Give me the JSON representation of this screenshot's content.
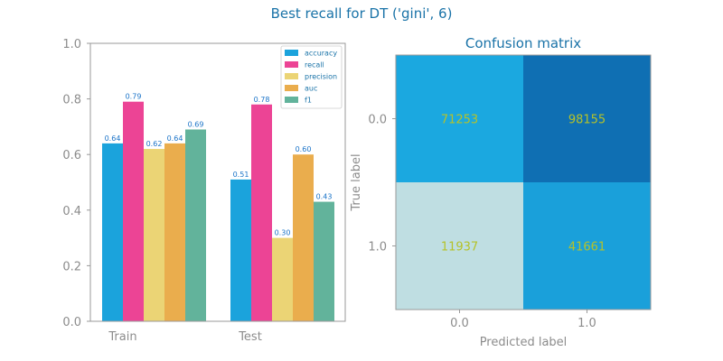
{
  "figure": {
    "suptitle": "Best recall for DT ('gini', 6)"
  },
  "chart_data": [
    {
      "type": "bar",
      "title": "",
      "categories": [
        "Train",
        "Test"
      ],
      "series": [
        {
          "name": "accuracy",
          "values": [
            0.64,
            0.51
          ],
          "color": "#1ba3dc"
        },
        {
          "name": "recall",
          "values": [
            0.79,
            0.78
          ],
          "color": "#ec4495"
        },
        {
          "name": "precision",
          "values": [
            0.62,
            0.3
          ],
          "color": "#ebd475"
        },
        {
          "name": "auc",
          "values": [
            0.64,
            0.6
          ],
          "color": "#eaad4d"
        },
        {
          "name": "f1",
          "values": [
            0.69,
            0.43
          ],
          "color": "#62b39b"
        }
      ],
      "value_labels": [
        [
          "0.64",
          "0.79",
          "0.62",
          "0.64",
          "0.69"
        ],
        [
          "0.51",
          "0.78",
          "0.30",
          "0.60",
          "0.43"
        ]
      ],
      "ylim": [
        0,
        1
      ],
      "yticks": [
        "0.0",
        "0.2",
        "0.4",
        "0.6",
        "0.8",
        "1.0"
      ],
      "xlabel": "",
      "ylabel": "",
      "legend_position": "top-right",
      "grid": false
    },
    {
      "type": "heatmap",
      "title": "Confusion matrix",
      "xlabel": "Predicted label",
      "ylabel": "True label",
      "xticks": [
        "0.0",
        "1.0"
      ],
      "yticks": [
        "0.0",
        "1.0"
      ],
      "values": [
        [
          71253,
          98155
        ],
        [
          11937,
          41661
        ]
      ],
      "cell_labels": [
        [
          "71253",
          "98155"
        ],
        [
          "11937",
          "41661"
        ]
      ],
      "colors": [
        [
          "#1ba8e0",
          "#0f6fb3"
        ],
        [
          "#bfdee2",
          "#1aa0da"
        ]
      ]
    }
  ]
}
